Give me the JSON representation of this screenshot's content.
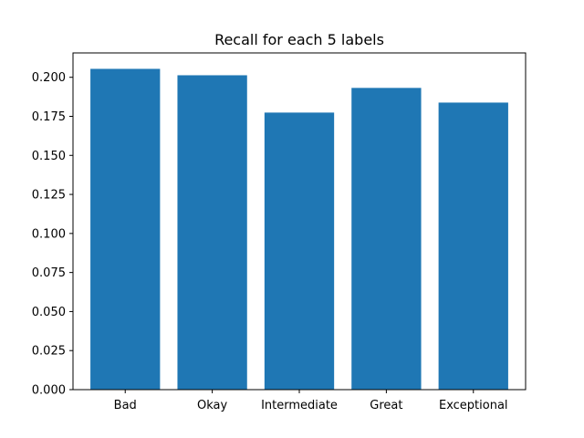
{
  "chart_data": {
    "type": "bar",
    "title": "Recall for each 5 labels",
    "xlabel": "",
    "ylabel": "",
    "categories": [
      "Bad",
      "Okay",
      "Intermediate",
      "Great",
      "Exceptional"
    ],
    "values": [
      0.2054,
      0.2013,
      0.1774,
      0.1932,
      0.1838
    ],
    "ylim": [
      0,
      0.2156
    ],
    "yticks": [
      0.0,
      0.025,
      0.05,
      0.075,
      0.1,
      0.125,
      0.15,
      0.175,
      0.2
    ],
    "ytick_labels": [
      "0.000",
      "0.025",
      "0.050",
      "0.075",
      "0.100",
      "0.125",
      "0.150",
      "0.175",
      "0.200"
    ],
    "bar_color": "#1f77b4",
    "grid": false,
    "legend": "none"
  }
}
